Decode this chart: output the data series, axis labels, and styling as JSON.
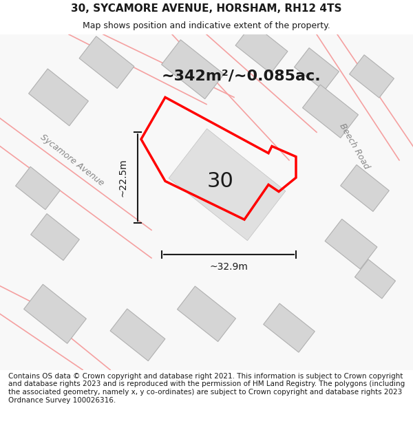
{
  "title": "30, SYCAMORE AVENUE, HORSHAM, RH12 4TS",
  "subtitle": "Map shows position and indicative extent of the property.",
  "footer": "Contains OS data © Crown copyright and database right 2021. This information is subject to Crown copyright and database rights 2023 and is reproduced with the permission of HM Land Registry. The polygons (including the associated geometry, namely x, y co-ordinates) are subject to Crown copyright and database rights 2023 Ordnance Survey 100026316.",
  "area_label": "~342m²/~0.085ac.",
  "width_label": "~32.9m",
  "height_label": "~22.5m",
  "number_label": "30",
  "background_color": "#f5f5f5",
  "map_bg": "#ffffff",
  "property_outline_color": "#ff0000",
  "building_color": "#e0e0e0",
  "road_line_color": "#f0a0a0",
  "dimension_color": "#1a1a1a",
  "title_fontsize": 11,
  "subtitle_fontsize": 9,
  "footer_fontsize": 7.5
}
